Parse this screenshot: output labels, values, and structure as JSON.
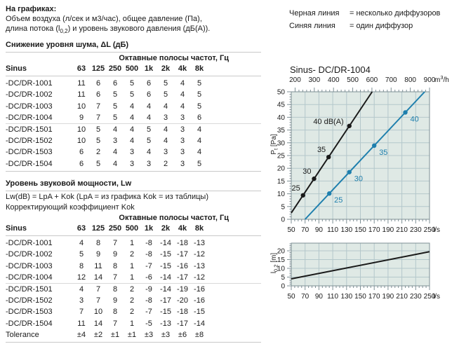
{
  "intro": {
    "title": "На графиках:",
    "line1": "Объем воздуха (л/сек и м3/час), общее давление (Па),",
    "line2_pre": "длина потока (l",
    "line2_sub": "0,2",
    "line2_post": ") и уровень звукового давления (дБ(А))."
  },
  "legend": {
    "rows": [
      {
        "name": "Черная линия",
        "value": "= несколько диффузоров"
      },
      {
        "name": "Синяя линия",
        "value": "= один диффузор"
      }
    ]
  },
  "table1": {
    "title": "Снижение уровня шума, ΔL (дБ)",
    "octave_header": "Октавные полосы частот, Гц",
    "col_headers": [
      "Sinus",
      "63",
      "125",
      "250",
      "500",
      "1k",
      "2k",
      "4k",
      "8k"
    ],
    "rows": [
      {
        "name": "-DC/DR-1001",
        "values": [
          "11",
          "6",
          "6",
          "5",
          "6",
          "5",
          "4",
          "5"
        ]
      },
      {
        "name": "-DC/DR-1002",
        "values": [
          "11",
          "6",
          "5",
          "5",
          "6",
          "5",
          "4",
          "5"
        ]
      },
      {
        "name": "-DC/DR-1003",
        "values": [
          "10",
          "7",
          "5",
          "4",
          "4",
          "4",
          "4",
          "5"
        ]
      },
      {
        "name": "-DC/DR-1004",
        "values": [
          "9",
          "7",
          "5",
          "4",
          "4",
          "3",
          "3",
          "6"
        ]
      },
      {
        "name": "-DC/DR-1501",
        "values": [
          "10",
          "5",
          "4",
          "4",
          "5",
          "4",
          "3",
          "4"
        ]
      },
      {
        "name": "-DC/DR-1502",
        "values": [
          "10",
          "5",
          "3",
          "4",
          "5",
          "4",
          "3",
          "4"
        ]
      },
      {
        "name": "-DC/DR-1503",
        "values": [
          "6",
          "2",
          "4",
          "3",
          "4",
          "3",
          "3",
          "4"
        ]
      },
      {
        "name": "-DC/DR-1504",
        "values": [
          "6",
          "5",
          "4",
          "3",
          "3",
          "2",
          "3",
          "5"
        ]
      }
    ]
  },
  "table2": {
    "title": "Уровень звуковой мощности, Lw",
    "formula": "Lw(dB) = LpA + Kok (LpA = из графика Kok = из таблицы)",
    "subtitle": "Корректирующий коэффициент Kok",
    "octave_header": "Октавные полосы частот, Гц",
    "col_headers": [
      "Sinus",
      "63",
      "125",
      "250",
      "500",
      "1k",
      "2k",
      "4k",
      "8k"
    ],
    "rows": [
      {
        "name": "-DC/DR-1001",
        "values": [
          "4",
          "8",
          "7",
          "1",
          "-8",
          "-14",
          "-18",
          "-13"
        ]
      },
      {
        "name": "-DC/DR-1002",
        "values": [
          "5",
          "9",
          "9",
          "2",
          "-8",
          "-15",
          "-17",
          "-12"
        ]
      },
      {
        "name": "-DC/DR-1003",
        "values": [
          "8",
          "11",
          "8",
          "1",
          "-7",
          "-15",
          "-16",
          "-13"
        ]
      },
      {
        "name": "-DC/DR-1004",
        "values": [
          "12",
          "14",
          "7",
          "1",
          "-6",
          "-14",
          "-17",
          "-12"
        ]
      },
      {
        "name": "-DC/DR-1501",
        "values": [
          "4",
          "7",
          "8",
          "2",
          "-9",
          "-14",
          "-19",
          "-16"
        ]
      },
      {
        "name": "-DC/DR-1502",
        "values": [
          "3",
          "7",
          "9",
          "2",
          "-8",
          "-17",
          "-20",
          "-16"
        ]
      },
      {
        "name": "-DC/DR-1503",
        "values": [
          "7",
          "10",
          "8",
          "2",
          "-7",
          "-15",
          "-18",
          "-15"
        ]
      },
      {
        "name": "-DC/DR-1504",
        "values": [
          "11",
          "14",
          "7",
          "1",
          "-5",
          "-13",
          "-17",
          "-14"
        ]
      },
      {
        "name": "Tolerance",
        "values": [
          "±4",
          "±2",
          "±1",
          "±1",
          "±3",
          "±3",
          "±6",
          "±8"
        ]
      }
    ]
  },
  "chart_data": [
    {
      "type": "line",
      "title": "Sinus- DC/DR-1004",
      "x_bottom": {
        "label": "l/s",
        "min": 50,
        "max": 250,
        "major_ticks": [
          50,
          70,
          90,
          110,
          130,
          150,
          170,
          190,
          210,
          230,
          250
        ],
        "minor_step": 5
      },
      "x_top": {
        "label_main": "m",
        "label_sup": "3",
        "label_post": "/h",
        "major_ticks": [
          200,
          300,
          400,
          500,
          600,
          700,
          800,
          900
        ],
        "minor_step": 20,
        "ls_per_unit": 0.27778
      },
      "y": {
        "label_main": "P",
        "label_sub": "t",
        "label_post": " [Pa]",
        "min": 0,
        "max": 50,
        "major_ticks": [
          0,
          5,
          10,
          15,
          20,
          25,
          30,
          35,
          40,
          45,
          50
        ],
        "minor_step": 1
      },
      "series": [
        {
          "name": "несколько диффузоров",
          "color": "#1a1a1a",
          "line": [
            [
              50,
              2.5
            ],
            [
              167,
              50
            ]
          ],
          "points": [
            {
              "x": 67,
              "y": 9.4,
              "label": "25",
              "pos": "above-left"
            },
            {
              "x": 83,
              "y": 15.9,
              "label": "30",
              "pos": "above-left"
            },
            {
              "x": 104,
              "y": 24.4,
              "label": "35",
              "pos": "above-left"
            },
            {
              "x": 134,
              "y": 36.6,
              "label": "40 dB(A)",
              "pos": "left"
            }
          ]
        },
        {
          "name": "один диффузор",
          "color": "#1e7fad",
          "line": [
            [
              70,
              0
            ],
            [
              243,
              50
            ]
          ],
          "points": [
            {
              "x": 105,
              "y": 10.1,
              "label": "25",
              "pos": "below-right"
            },
            {
              "x": 134,
              "y": 18.5,
              "label": "30",
              "pos": "below-right"
            },
            {
              "x": 170,
              "y": 28.9,
              "label": "35",
              "pos": "below-right"
            },
            {
              "x": 215,
              "y": 41.9,
              "label": "40",
              "pos": "below-right"
            }
          ]
        }
      ],
      "colors": {
        "plot_bg": "#dfe9e5",
        "grid": "#b4c7cb",
        "border": "#7d8f94"
      }
    },
    {
      "type": "line",
      "title": "",
      "x_bottom": {
        "label": "l/s",
        "min": 50,
        "max": 250,
        "major_ticks": [
          50,
          70,
          90,
          110,
          130,
          150,
          170,
          190,
          210,
          230,
          250
        ],
        "minor_step": 5
      },
      "y": {
        "label_main": "l",
        "label_sub": "0,2",
        "label_post": " [m]",
        "min": 0,
        "max": 24.4,
        "major_ticks": [
          0,
          5,
          10,
          15,
          20
        ],
        "minor_step": 1
      },
      "series": [
        {
          "name": "длина потока",
          "color": "#1a1a1a",
          "line": [
            [
              50,
              4
            ],
            [
              250,
              19.5
            ]
          ],
          "points": []
        }
      ],
      "colors": {
        "plot_bg": "#dfe9e5",
        "grid": "#b4c7cb",
        "border": "#7d8f94"
      }
    }
  ]
}
